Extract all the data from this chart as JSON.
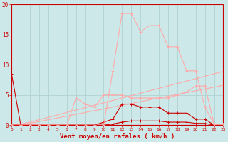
{
  "background_color": "#cce8e8",
  "grid_color": "#aacece",
  "xlabel": "Vent moyen/en rafales ( km/h )",
  "xlabel_color": "#cc0000",
  "tick_color": "#cc0000",
  "ylabel_ticks": [
    0,
    5,
    10,
    15,
    20
  ],
  "x_max": 23,
  "y_max": 20,
  "series": [
    {
      "x": [
        0,
        1
      ],
      "y": [
        8.5,
        0
      ],
      "color": "#cc0000",
      "marker": "+",
      "lw": 0.8
    },
    {
      "x": [
        0,
        1,
        2,
        3,
        4,
        5,
        6,
        7,
        8,
        9,
        10,
        11,
        12,
        13,
        14,
        15,
        16,
        17,
        18,
        19,
        20,
        21,
        22,
        23
      ],
      "y": [
        0,
        0,
        0,
        0,
        0,
        0,
        0,
        0,
        0,
        0,
        0,
        0.2,
        0.5,
        0.7,
        0.7,
        0.7,
        0.7,
        0.5,
        0.5,
        0.5,
        0.3,
        0.3,
        0,
        0
      ],
      "color": "#cc0000",
      "marker": "+",
      "lw": 0.8
    },
    {
      "x": [
        0,
        1,
        2,
        3,
        4,
        5,
        6,
        7,
        8,
        9,
        10,
        11,
        12,
        13,
        14,
        15,
        16,
        17,
        18,
        19,
        20,
        21,
        22,
        23
      ],
      "y": [
        0,
        0,
        0,
        0,
        0,
        0,
        0,
        0,
        0,
        0,
        0.5,
        1.0,
        3.5,
        3.5,
        3.0,
        3.0,
        3.0,
        2.0,
        2.0,
        2.0,
        1.0,
        1.0,
        0,
        0
      ],
      "color": "#cc0000",
      "marker": "+",
      "lw": 0.8
    },
    {
      "x": [
        0,
        1,
        2,
        3,
        4,
        5,
        6,
        7,
        8,
        9,
        10,
        11,
        12,
        13,
        14,
        15,
        16,
        17,
        18,
        19,
        20,
        21,
        22,
        23
      ],
      "y": [
        0,
        0.1,
        0.3,
        0.6,
        0.9,
        1.2,
        1.5,
        1.8,
        2.1,
        2.4,
        2.7,
        3.0,
        3.3,
        3.6,
        3.9,
        4.2,
        4.5,
        4.8,
        5.1,
        5.4,
        5.7,
        6.0,
        6.3,
        6.6
      ],
      "color": "#ffaaaa",
      "marker": null,
      "lw": 0.8
    },
    {
      "x": [
        0,
        1,
        2,
        3,
        4,
        5,
        6,
        7,
        8,
        9,
        10,
        11,
        12,
        13,
        14,
        15,
        16,
        17,
        18,
        19,
        20,
        21,
        22,
        23
      ],
      "y": [
        0,
        0.2,
        0.5,
        0.9,
        1.3,
        1.7,
        2.1,
        2.5,
        2.9,
        3.3,
        3.7,
        4.1,
        4.5,
        4.9,
        5.3,
        5.7,
        6.1,
        6.5,
        6.9,
        7.3,
        7.7,
        8.1,
        8.5,
        8.9
      ],
      "color": "#ffaaaa",
      "marker": null,
      "lw": 0.8
    },
    {
      "x": [
        0,
        1,
        2,
        3,
        4,
        5,
        6,
        7,
        8,
        9,
        10,
        11,
        12,
        13,
        14,
        15,
        16,
        17,
        18,
        19,
        20,
        21,
        22,
        23
      ],
      "y": [
        0,
        0,
        0,
        0,
        0,
        0,
        0,
        4.5,
        3.5,
        3.0,
        5.0,
        5.0,
        5.0,
        4.5,
        4.5,
        4.5,
        4.5,
        4.5,
        5.0,
        5.5,
        6.5,
        6.5,
        0.2,
        0.1
      ],
      "color": "#ffaaaa",
      "marker": "+",
      "lw": 0.8
    },
    {
      "x": [
        0,
        1,
        2,
        3,
        4,
        5,
        6,
        7,
        8,
        9,
        10,
        11,
        12,
        13,
        14,
        15,
        16,
        17,
        18,
        19,
        20,
        21,
        22,
        23
      ],
      "y": [
        0,
        0,
        0,
        0,
        0,
        0,
        0,
        0,
        0,
        0,
        0,
        9.0,
        18.5,
        18.5,
        15.5,
        16.5,
        16.5,
        13.0,
        13.0,
        9.0,
        9.0,
        3.0,
        0.2,
        0.1
      ],
      "color": "#ffaaaa",
      "marker": "+",
      "lw": 0.8
    }
  ]
}
